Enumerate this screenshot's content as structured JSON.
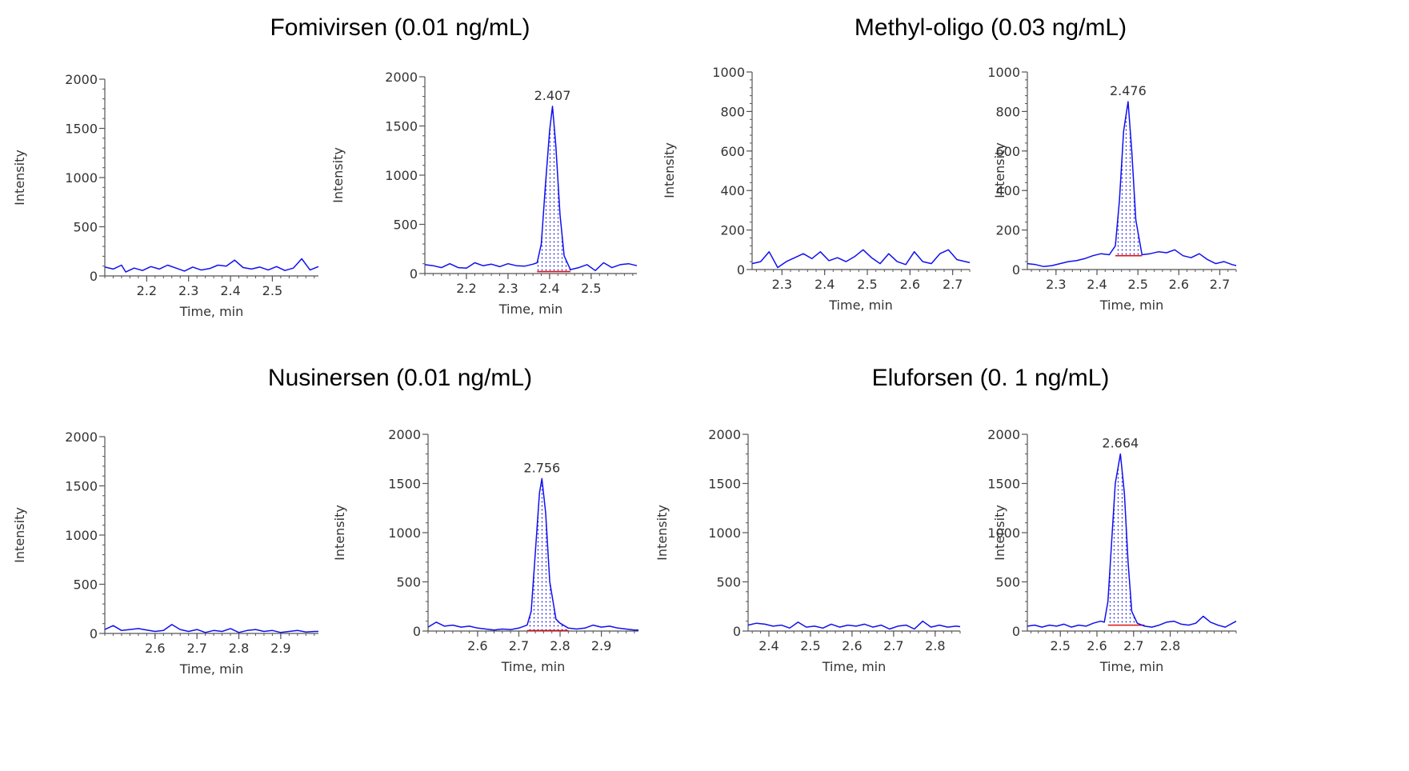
{
  "groups": [
    {
      "title": "Fomivirsen (0.01 ng/mL)"
    },
    {
      "title": "Methyl-oligo (0.03 ng/mL)"
    },
    {
      "title": "Nusinersen (0.01 ng/mL)"
    },
    {
      "title": "Eluforsen (0. 1 ng/mL)"
    }
  ],
  "colors": {
    "trace": "#1010ee",
    "baseline": "#e01010",
    "axis": "#555555"
  },
  "chart_data": [
    {
      "type": "line",
      "group": "Fomivirsen (0.01 ng/mL)",
      "xlabel": "Time, min",
      "ylabel": "Intensity",
      "xlim": [
        2.1,
        2.61
      ],
      "ylim": [
        0,
        2000
      ],
      "xticks": [
        2.2,
        2.3,
        2.4,
        2.5
      ],
      "xtick_labels": [
        "2.2",
        "2.3",
        "2.4",
        "2.5"
      ],
      "yticks": [
        0,
        500,
        1000,
        1500,
        2000
      ],
      "series": [
        {
          "x": [
            2.1,
            2.12,
            2.14,
            2.15,
            2.17,
            2.19,
            2.21,
            2.23,
            2.25,
            2.27,
            2.29,
            2.31,
            2.33,
            2.35,
            2.37,
            2.39,
            2.41,
            2.43,
            2.45,
            2.47,
            2.49,
            2.51,
            2.53,
            2.55,
            2.57,
            2.59,
            2.61
          ],
          "y": [
            90,
            70,
            110,
            40,
            80,
            55,
            95,
            70,
            110,
            80,
            50,
            90,
            60,
            75,
            110,
            100,
            160,
            85,
            70,
            90,
            60,
            95,
            55,
            80,
            175,
            60,
            95
          ]
        }
      ]
    },
    {
      "type": "line",
      "group": "Fomivirsen (0.01 ng/mL)",
      "xlabel": "Time, min",
      "ylabel": "Intensity",
      "xlim": [
        2.1,
        2.61
      ],
      "ylim": [
        0,
        2000
      ],
      "xticks": [
        2.2,
        2.3,
        2.4,
        2.5
      ],
      "xtick_labels": [
        "2.2",
        "2.3",
        "2.4",
        "2.5"
      ],
      "yticks": [
        0,
        500,
        1000,
        1500,
        2000
      ],
      "peak_label": "2.407",
      "peak_region": {
        "x_start": 2.37,
        "x_end": 2.45,
        "baseline": 20
      },
      "series": [
        {
          "x": [
            2.1,
            2.12,
            2.14,
            2.16,
            2.18,
            2.2,
            2.22,
            2.24,
            2.26,
            2.28,
            2.3,
            2.32,
            2.34,
            2.36,
            2.37,
            2.38,
            2.39,
            2.4,
            2.407,
            2.415,
            2.425,
            2.435,
            2.45,
            2.47,
            2.49,
            2.51,
            2.53,
            2.55,
            2.57,
            2.59,
            2.61
          ],
          "y": [
            90,
            80,
            60,
            100,
            60,
            55,
            110,
            80,
            95,
            70,
            100,
            80,
            75,
            95,
            110,
            300,
            900,
            1450,
            1700,
            1300,
            600,
            180,
            40,
            60,
            90,
            30,
            110,
            60,
            90,
            100,
            80
          ]
        }
      ]
    },
    {
      "type": "line",
      "group": "Methyl-oligo (0.03 ng/mL)",
      "xlabel": "Time, min",
      "ylabel": "Intensity",
      "xlim": [
        2.23,
        2.74
      ],
      "ylim": [
        0,
        1000
      ],
      "xticks": [
        2.3,
        2.4,
        2.5,
        2.6,
        2.7
      ],
      "xtick_labels": [
        "2.3",
        "2.4",
        "2.5",
        "2.6",
        "2.7"
      ],
      "yticks": [
        0,
        200,
        400,
        600,
        800,
        1000
      ],
      "series": [
        {
          "x": [
            2.23,
            2.25,
            2.27,
            2.29,
            2.31,
            2.33,
            2.35,
            2.37,
            2.39,
            2.41,
            2.43,
            2.45,
            2.47,
            2.49,
            2.51,
            2.53,
            2.55,
            2.57,
            2.59,
            2.61,
            2.63,
            2.65,
            2.67,
            2.69,
            2.71,
            2.73,
            2.74
          ],
          "y": [
            30,
            40,
            90,
            10,
            40,
            60,
            80,
            55,
            90,
            45,
            60,
            40,
            65,
            100,
            60,
            30,
            80,
            40,
            25,
            90,
            40,
            30,
            80,
            100,
            50,
            40,
            35
          ]
        }
      ]
    },
    {
      "type": "line",
      "group": "Methyl-oligo (0.03 ng/mL)",
      "xlabel": "Time, min",
      "ylabel": "Intensity",
      "xlim": [
        2.23,
        2.74
      ],
      "ylim": [
        0,
        1000
      ],
      "xticks": [
        2.3,
        2.4,
        2.5,
        2.6,
        2.7
      ],
      "xtick_labels": [
        "2.3",
        "2.4",
        "2.5",
        "2.6",
        "2.7"
      ],
      "yticks": [
        0,
        200,
        400,
        600,
        800,
        1000
      ],
      "peak_label": "2.476",
      "peak_region": {
        "x_start": 2.445,
        "x_end": 2.51,
        "baseline": 70
      },
      "series": [
        {
          "x": [
            2.23,
            2.25,
            2.27,
            2.29,
            2.31,
            2.33,
            2.35,
            2.37,
            2.39,
            2.41,
            2.43,
            2.445,
            2.455,
            2.465,
            2.476,
            2.485,
            2.495,
            2.51,
            2.53,
            2.55,
            2.57,
            2.59,
            2.61,
            2.63,
            2.65,
            2.67,
            2.69,
            2.71,
            2.73,
            2.74
          ],
          "y": [
            30,
            25,
            15,
            20,
            30,
            40,
            45,
            55,
            70,
            80,
            75,
            120,
            350,
            700,
            850,
            600,
            250,
            75,
            80,
            90,
            85,
            100,
            70,
            60,
            80,
            50,
            30,
            40,
            25,
            20
          ]
        }
      ]
    },
    {
      "type": "line",
      "group": "Nusinersen (0.01 ng/mL)",
      "xlabel": "Time, min",
      "ylabel": "Intensity",
      "xlim": [
        2.48,
        2.99
      ],
      "ylim": [
        0,
        2000
      ],
      "xticks": [
        2.6,
        2.7,
        2.8,
        2.9
      ],
      "xtick_labels": [
        "2.6",
        "2.7",
        "2.8",
        "2.9"
      ],
      "yticks": [
        0,
        500,
        1000,
        1500,
        2000
      ],
      "series": [
        {
          "x": [
            2.48,
            2.5,
            2.52,
            2.54,
            2.56,
            2.58,
            2.6,
            2.62,
            2.64,
            2.66,
            2.68,
            2.7,
            2.72,
            2.74,
            2.76,
            2.78,
            2.8,
            2.82,
            2.84,
            2.86,
            2.88,
            2.9,
            2.92,
            2.94,
            2.96,
            2.98,
            2.99
          ],
          "y": [
            40,
            80,
            30,
            40,
            50,
            35,
            20,
            30,
            90,
            40,
            20,
            40,
            10,
            30,
            20,
            50,
            10,
            30,
            40,
            20,
            30,
            10,
            20,
            30,
            15,
            20,
            20
          ]
        }
      ]
    },
    {
      "type": "line",
      "group": "Nusinersen (0.01 ng/mL)",
      "xlabel": "Time, min",
      "ylabel": "Intensity",
      "xlim": [
        2.48,
        2.99
      ],
      "ylim": [
        0,
        2000
      ],
      "xticks": [
        2.6,
        2.7,
        2.8,
        2.9
      ],
      "xtick_labels": [
        "2.6",
        "2.7",
        "2.8",
        "2.9"
      ],
      "yticks": [
        0,
        500,
        1000,
        1500,
        2000
      ],
      "peak_label": "2.756",
      "peak_region": {
        "x_start": 2.72,
        "x_end": 2.82,
        "baseline": 5
      },
      "series": [
        {
          "x": [
            2.48,
            2.5,
            2.52,
            2.54,
            2.56,
            2.58,
            2.6,
            2.62,
            2.64,
            2.66,
            2.68,
            2.7,
            2.72,
            2.73,
            2.74,
            2.75,
            2.756,
            2.765,
            2.775,
            2.79,
            2.8,
            2.82,
            2.84,
            2.86,
            2.88,
            2.9,
            2.92,
            2.94,
            2.96,
            2.98,
            2.99
          ],
          "y": [
            40,
            90,
            50,
            60,
            40,
            50,
            30,
            20,
            10,
            20,
            15,
            30,
            60,
            200,
            800,
            1400,
            1550,
            1200,
            500,
            120,
            80,
            30,
            20,
            30,
            60,
            40,
            50,
            30,
            20,
            10,
            10
          ]
        }
      ]
    },
    {
      "type": "line",
      "group": "Eluforsen (0. 1 ng/mL)",
      "xlabel": "Time, min",
      "ylabel": "Intensity",
      "xlim": [
        2.35,
        2.86
      ],
      "ylim": [
        0,
        2000
      ],
      "xticks": [
        2.4,
        2.5,
        2.6,
        2.7,
        2.8
      ],
      "xtick_labels": [
        "2.4",
        "2.5",
        "2.6",
        "2.7",
        "2.8"
      ],
      "yticks": [
        0,
        500,
        1000,
        1500,
        2000
      ],
      "series": [
        {
          "x": [
            2.35,
            2.37,
            2.39,
            2.41,
            2.43,
            2.45,
            2.47,
            2.49,
            2.51,
            2.53,
            2.55,
            2.57,
            2.59,
            2.61,
            2.63,
            2.65,
            2.67,
            2.69,
            2.71,
            2.73,
            2.75,
            2.77,
            2.79,
            2.81,
            2.83,
            2.85,
            2.86
          ],
          "y": [
            60,
            80,
            70,
            50,
            60,
            30,
            90,
            40,
            50,
            30,
            70,
            40,
            60,
            50,
            70,
            40,
            60,
            20,
            50,
            60,
            20,
            100,
            40,
            60,
            40,
            50,
            45
          ]
        }
      ]
    },
    {
      "type": "line",
      "group": "Eluforsen (0. 1 ng/mL)",
      "xlabel": "Time, min",
      "ylabel": "Intensity",
      "xlim": [
        2.41,
        2.98
      ],
      "ylim": [
        0,
        2000
      ],
      "xticks": [
        2.5,
        2.6,
        2.7,
        2.8
      ],
      "xtick_labels": [
        "2.5",
        "2.6",
        "2.7",
        "2.8"
      ],
      "yticks": [
        0,
        500,
        1000,
        1500,
        2000
      ],
      "peak_label": "2.664",
      "peak_region": {
        "x_start": 2.63,
        "x_end": 2.73,
        "baseline": 60
      },
      "series": [
        {
          "x": [
            2.41,
            2.43,
            2.45,
            2.47,
            2.49,
            2.51,
            2.53,
            2.55,
            2.57,
            2.59,
            2.61,
            2.62,
            2.63,
            2.64,
            2.65,
            2.664,
            2.675,
            2.685,
            2.695,
            2.71,
            2.73,
            2.75,
            2.77,
            2.79,
            2.81,
            2.83,
            2.85,
            2.87,
            2.89,
            2.91,
            2.93,
            2.95,
            2.98
          ],
          "y": [
            50,
            60,
            40,
            60,
            50,
            70,
            40,
            60,
            50,
            80,
            100,
            90,
            300,
            900,
            1500,
            1800,
            1400,
            700,
            200,
            80,
            50,
            40,
            60,
            90,
            100,
            70,
            60,
            80,
            150,
            90,
            60,
            40,
            100
          ]
        }
      ]
    }
  ]
}
